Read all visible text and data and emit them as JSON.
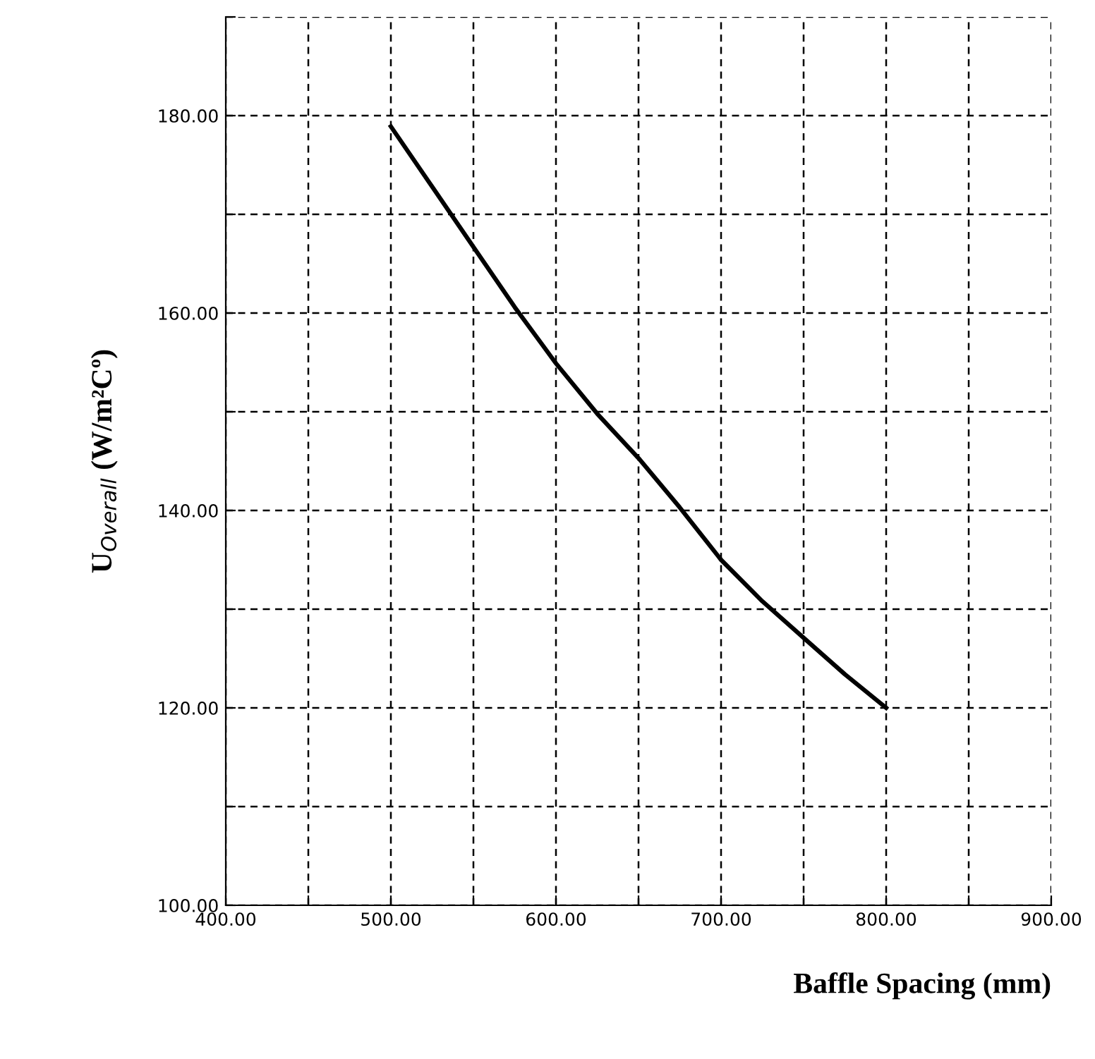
{
  "chart_data": {
    "type": "line",
    "xlabel": "Baffle Spacing (mm)",
    "ylabel": "U$_{Overall}$ (W/m²Cº)",
    "x": [
      500,
      525,
      550,
      575,
      600,
      625,
      650,
      675,
      700,
      725,
      750,
      775,
      800
    ],
    "series": [
      {
        "color": "#000000",
        "values": [
          178.9,
          172.8,
          166.7,
          160.6,
          154.9,
          149.8,
          145.3,
          140.3,
          135.0,
          130.8,
          127.1,
          123.4,
          120.0
        ]
      }
    ],
    "xlim": [
      400,
      900
    ],
    "ylim": [
      100,
      190
    ],
    "xticks": [
      {
        "value": 400,
        "label": "400.00"
      },
      {
        "value": 450,
        "label": null
      },
      {
        "value": 500,
        "label": "500.00"
      },
      {
        "value": 550,
        "label": null
      },
      {
        "value": 600,
        "label": "600.00"
      },
      {
        "value": 650,
        "label": null
      },
      {
        "value": 700,
        "label": "700.00"
      },
      {
        "value": 750,
        "label": null
      },
      {
        "value": 800,
        "label": "800.00"
      },
      {
        "value": 850,
        "label": null
      },
      {
        "value": 900,
        "label": "900.00"
      }
    ],
    "yticks": [
      {
        "value": 100,
        "label": "100.00"
      },
      {
        "value": 110,
        "label": null
      },
      {
        "value": 120,
        "label": "120.00"
      },
      {
        "value": 130,
        "label": null
      },
      {
        "value": 140,
        "label": "140.00"
      },
      {
        "value": 150,
        "label": null
      },
      {
        "value": 160,
        "label": "160.00"
      },
      {
        "value": 170,
        "label": null
      },
      {
        "value": 180,
        "label": "180.00"
      },
      {
        "value": 190,
        "label": null
      }
    ],
    "grid": true,
    "marker": "none",
    "line_style": "solid",
    "legend": false
  }
}
